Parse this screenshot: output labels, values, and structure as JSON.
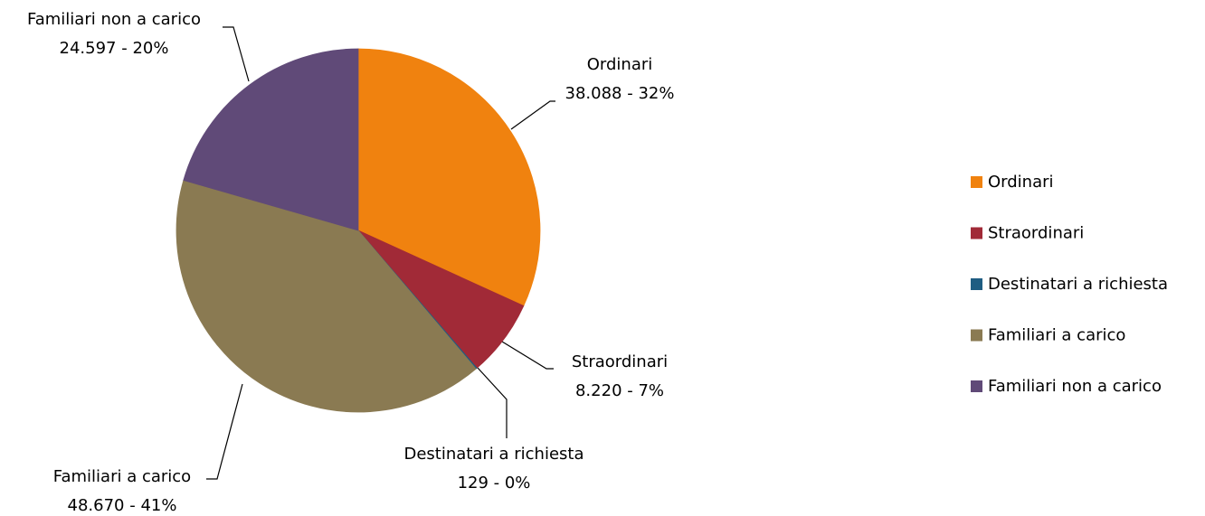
{
  "chart_data": {
    "type": "pie",
    "categories": [
      "Ordinari",
      "Straordinari",
      "Destinatari a richiesta",
      "Familiari a carico",
      "Familiari non a carico"
    ],
    "values": [
      38088,
      8220,
      129,
      48670,
      24597
    ],
    "value_labels": [
      "38.088 - 32%",
      "8.220 - 7%",
      "129 -  0%",
      "48.670 -  41%",
      "24.597 - 20%"
    ],
    "colors": [
      "#f0820f",
      "#a12a37",
      "#1f5d82",
      "#8a7a52",
      "#604a78"
    ],
    "legend": "right"
  }
}
